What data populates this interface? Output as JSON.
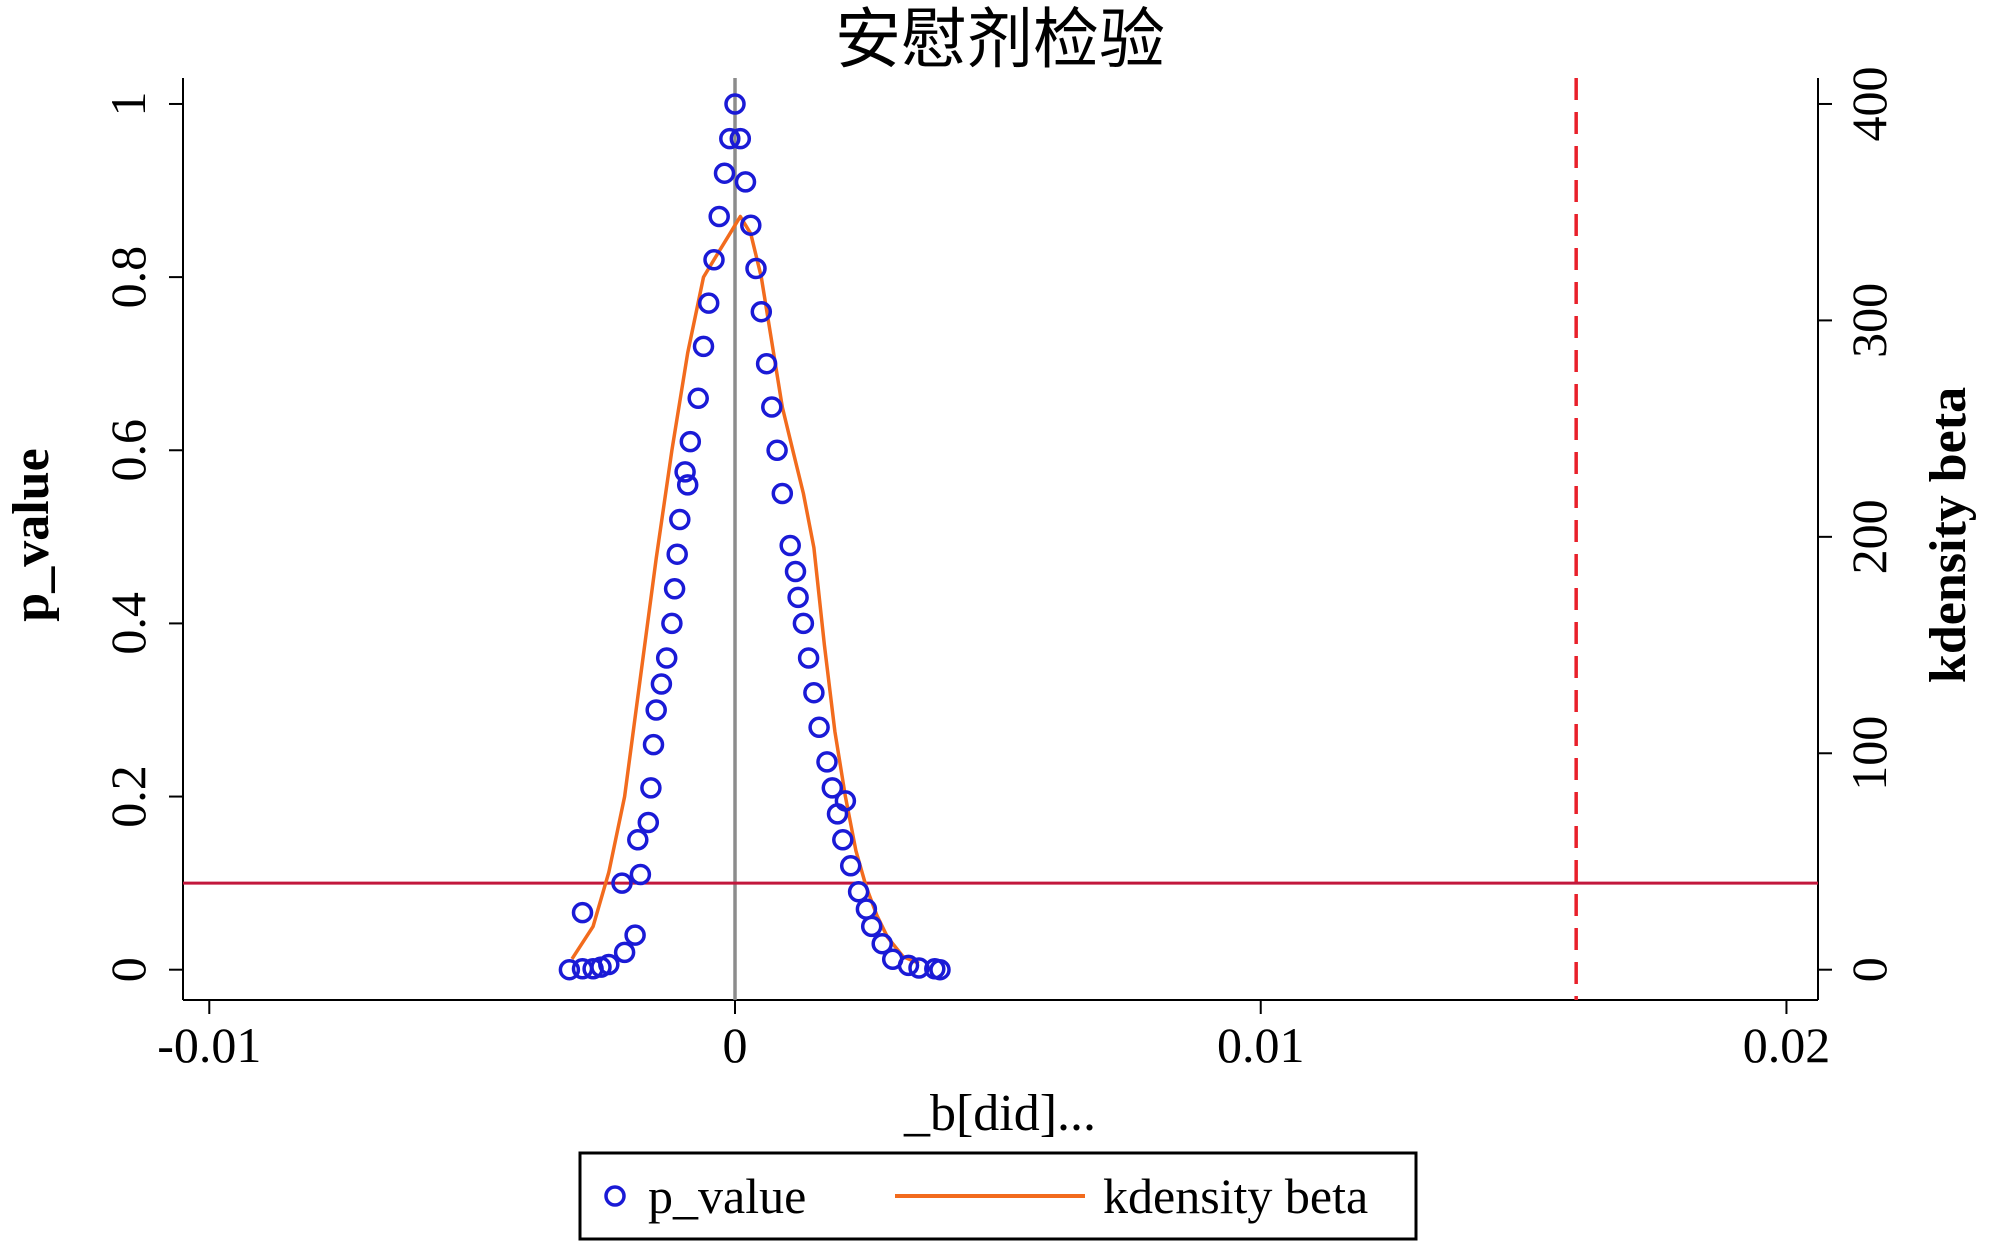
{
  "chart_data": {
    "type": "scatter",
    "title": "安慰剂检验",
    "xlabel": "_b[did]...",
    "ylabel_left": "p_value",
    "ylabel_right": "kdensity beta",
    "xlim": [
      -0.0105,
      0.0206
    ],
    "ylim_left": [
      -0.035,
      1.03
    ],
    "ylim_right": [
      -14,
      412
    ],
    "x_ticks": [
      {
        "value": -0.01,
        "label": "-0.01"
      },
      {
        "value": 0,
        "label": "0"
      },
      {
        "value": 0.01,
        "label": "0.01"
      },
      {
        "value": 0.02,
        "label": "0.02"
      }
    ],
    "y_left_ticks": [
      {
        "value": 0,
        "label": "0"
      },
      {
        "value": 0.2,
        "label": "0.2"
      },
      {
        "value": 0.4,
        "label": "0.4"
      },
      {
        "value": 0.6,
        "label": "0.6"
      },
      {
        "value": 0.8,
        "label": "0.8"
      },
      {
        "value": 1,
        "label": "1"
      }
    ],
    "y_right_ticks": [
      {
        "value": 0,
        "label": "0"
      },
      {
        "value": 100,
        "label": "100"
      },
      {
        "value": 200,
        "label": "200"
      },
      {
        "value": 300,
        "label": "300"
      },
      {
        "value": 400,
        "label": "400"
      }
    ],
    "grid": false,
    "legend": {
      "position": "bottom",
      "entries": [
        {
          "label": "p_value",
          "marker": "circle",
          "color": "#1a1ad6"
        },
        {
          "label": "kdensity beta",
          "marker": "line",
          "color": "#f26b1d"
        }
      ]
    },
    "reference_lines": [
      {
        "axis": "x",
        "value": 0,
        "color": "#8c8c8c",
        "style": "solid"
      },
      {
        "axis": "x",
        "value": 0.016,
        "color": "#e8202a",
        "style": "dashed"
      },
      {
        "axis": "y",
        "value": 0.1,
        "color": "#c2173c",
        "style": "solid"
      }
    ],
    "series": [
      {
        "name": "p_value",
        "type": "scatter",
        "axis": "left",
        "color": "#1a1ad6",
        "points": [
          [
            -0.00315,
            0.0
          ],
          [
            -0.0029,
            0.001
          ],
          [
            -0.0027,
            0.001
          ],
          [
            -0.00255,
            0.003
          ],
          [
            -0.0029,
            0.066
          ],
          [
            -0.0024,
            0.006
          ],
          [
            -0.0021,
            0.02
          ],
          [
            -0.00215,
            0.1
          ],
          [
            -0.0019,
            0.04
          ],
          [
            -0.0018,
            0.11
          ],
          [
            -0.00185,
            0.15
          ],
          [
            -0.00165,
            0.17
          ],
          [
            -0.0016,
            0.21
          ],
          [
            -0.00155,
            0.26
          ],
          [
            -0.0015,
            0.3
          ],
          [
            -0.0014,
            0.33
          ],
          [
            -0.0013,
            0.36
          ],
          [
            -0.0012,
            0.4
          ],
          [
            -0.00115,
            0.44
          ],
          [
            -0.0011,
            0.48
          ],
          [
            -0.00105,
            0.52
          ],
          [
            -0.00095,
            0.575
          ],
          [
            -0.0009,
            0.56
          ],
          [
            -0.00085,
            0.61
          ],
          [
            -0.0007,
            0.66
          ],
          [
            -0.0006,
            0.72
          ],
          [
            -0.0005,
            0.77
          ],
          [
            -0.0004,
            0.82
          ],
          [
            -0.0003,
            0.87
          ],
          [
            -0.0002,
            0.92
          ],
          [
            -0.0001,
            0.96
          ],
          [
            0.0,
            1.0
          ],
          [
            0.0001,
            0.96
          ],
          [
            0.0002,
            0.91
          ],
          [
            0.0003,
            0.86
          ],
          [
            0.0004,
            0.81
          ],
          [
            0.0005,
            0.76
          ],
          [
            0.0006,
            0.7
          ],
          [
            0.0007,
            0.65
          ],
          [
            0.0008,
            0.6
          ],
          [
            0.0009,
            0.55
          ],
          [
            0.00105,
            0.49
          ],
          [
            0.00115,
            0.46
          ],
          [
            0.0012,
            0.43
          ],
          [
            0.0013,
            0.4
          ],
          [
            0.0014,
            0.36
          ],
          [
            0.0015,
            0.32
          ],
          [
            0.0016,
            0.28
          ],
          [
            0.00175,
            0.24
          ],
          [
            0.00185,
            0.21
          ],
          [
            0.00195,
            0.18
          ],
          [
            0.00205,
            0.15
          ],
          [
            0.0021,
            0.195
          ],
          [
            0.0022,
            0.12
          ],
          [
            0.00235,
            0.09
          ],
          [
            0.0025,
            0.07
          ],
          [
            0.0026,
            0.05
          ],
          [
            0.0028,
            0.03
          ],
          [
            0.003,
            0.012
          ],
          [
            0.0033,
            0.005
          ],
          [
            0.0035,
            0.002
          ],
          [
            0.0038,
            0.001
          ],
          [
            0.0039,
            0.0
          ]
        ]
      },
      {
        "name": "kdensity beta",
        "type": "line",
        "axis": "right",
        "color": "#f26b1d",
        "points": [
          [
            -0.0031,
            5
          ],
          [
            -0.0027,
            20
          ],
          [
            -0.0024,
            45
          ],
          [
            -0.0021,
            80
          ],
          [
            -0.0018,
            135
          ],
          [
            -0.0015,
            190
          ],
          [
            -0.0012,
            240
          ],
          [
            -0.0009,
            285
          ],
          [
            -0.0006,
            320
          ],
          [
            -0.0003,
            332
          ],
          [
            -0.0001,
            340
          ],
          [
            0.0001,
            348
          ],
          [
            0.0003,
            340
          ],
          [
            0.0005,
            320
          ],
          [
            0.0007,
            290
          ],
          [
            0.0009,
            260
          ],
          [
            0.0011,
            240
          ],
          [
            0.0013,
            220
          ],
          [
            0.0015,
            195
          ],
          [
            0.0017,
            150
          ],
          [
            0.0019,
            110
          ],
          [
            0.0021,
            80
          ],
          [
            0.0023,
            55
          ],
          [
            0.0025,
            38
          ],
          [
            0.0027,
            25
          ],
          [
            0.0029,
            15
          ],
          [
            0.0032,
            6
          ],
          [
            0.0035,
            3
          ]
        ]
      }
    ]
  }
}
